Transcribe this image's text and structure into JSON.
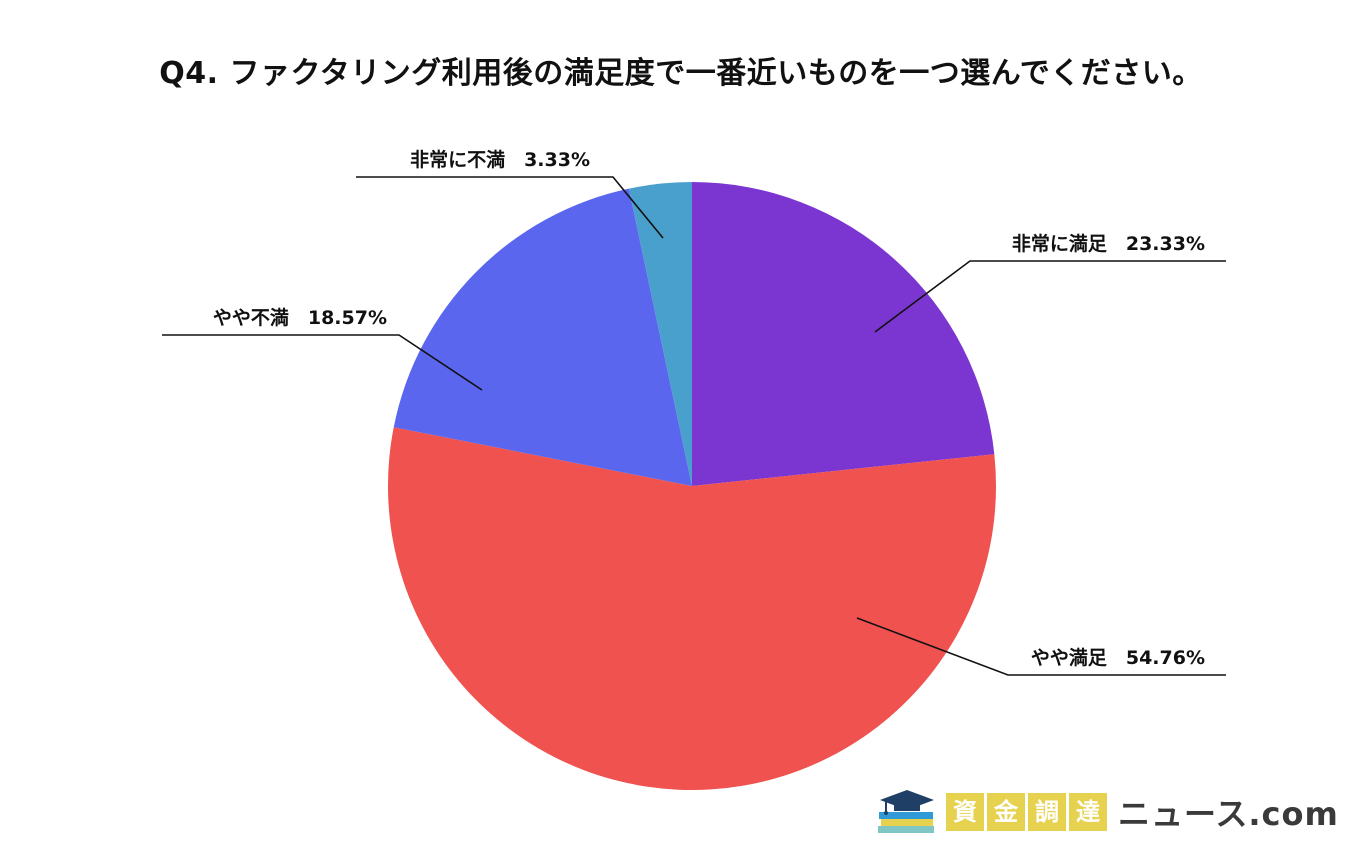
{
  "chart_data": {
    "type": "pie",
    "title": "Q4. ファクタリング利用後の満足度で一番近いものを一つ選んでください。",
    "slices": [
      {
        "label": "非常に満足",
        "value": 23.33,
        "value_text": "23.33%",
        "color": "#7b36d1"
      },
      {
        "label": "やや満足",
        "value": 54.76,
        "value_text": "54.76%",
        "color": "#ef524f"
      },
      {
        "label": "やや不満",
        "value": 18.57,
        "value_text": "18.57%",
        "color": "#5b66ef"
      },
      {
        "label": "非常に不満",
        "value": 3.33,
        "value_text": "3.33%",
        "color": "#4aa0cd"
      }
    ],
    "start_angle_deg": 0,
    "direction": "clockwise",
    "legend": "none"
  },
  "brand": {
    "icon": "graduation-cap-books-icon",
    "kanji": [
      "資",
      "金",
      "調",
      "達"
    ],
    "suffix": "ニュース.com",
    "kanji_color": "#e7d24f",
    "text_color": "#3a3a3a"
  }
}
